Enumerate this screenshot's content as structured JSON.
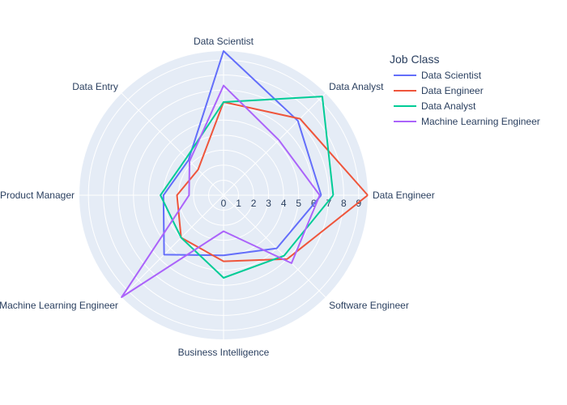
{
  "chart_data": {
    "type": "radar",
    "axes": [
      "Data Engineer",
      "Data Analyst",
      "Data Scientist",
      "Data Entry",
      "Product Manager",
      "Machine Learning Engineer",
      "Business Intelligence",
      "Software Engineer"
    ],
    "radial_ticks": [
      "0",
      "1",
      "2",
      "3",
      "4",
      "5",
      "6",
      "7",
      "8",
      "9"
    ],
    "rmax": 9.6,
    "legend_title": "Job Class",
    "series": [
      {
        "name": "Data Scientist",
        "color": "#636efa",
        "values": [
          6.5,
          7.0,
          9.6,
          3.3,
          4.0,
          5.6,
          4.0,
          5.0
        ]
      },
      {
        "name": "Data Engineer",
        "color": "#ef553b",
        "values": [
          9.6,
          7.2,
          6.2,
          2.4,
          3.1,
          4.0,
          4.4,
          6.0
        ]
      },
      {
        "name": "Data Analyst",
        "color": "#00cc96",
        "values": [
          7.3,
          9.3,
          6.2,
          3.5,
          4.2,
          4.0,
          5.5,
          5.7
        ]
      },
      {
        "name": "Machine Learning Engineer",
        "color": "#ab63fa",
        "values": [
          6.4,
          5.2,
          7.3,
          3.2,
          2.3,
          9.6,
          2.4,
          6.4
        ]
      }
    ],
    "grid": true,
    "legend_position": "top-right"
  }
}
